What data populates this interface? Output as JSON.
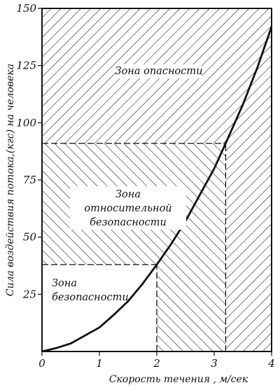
{
  "chart_data": {
    "type": "line",
    "xlabel": "Скорость течения , м/сек",
    "ylabel": "Сила воздействия потока,(кгс) на человека",
    "xlim": [
      0,
      4
    ],
    "ylim": [
      0,
      150
    ],
    "x_ticks": [
      "0",
      "1",
      "2",
      "3",
      "4"
    ],
    "y_ticks": [
      "25",
      "50",
      "75",
      "100",
      "125",
      "150"
    ],
    "grid": false,
    "series": [
      {
        "x": [
          0,
          0.25,
          0.5,
          0.75,
          1.0,
          1.25,
          1.5,
          1.75,
          2.0,
          2.25,
          2.5,
          2.75,
          3.0,
          3.2,
          3.5,
          3.75,
          4.0
        ],
        "y": [
          0,
          1.5,
          3.5,
          7,
          10.5,
          16,
          22,
          29.5,
          38,
          47,
          57,
          68.5,
          80,
          91,
          108,
          124,
          142
        ]
      }
    ],
    "reference_lines": [
      {
        "type": "horizontal",
        "y": 38,
        "x_end": 2.0
      },
      {
        "type": "vertical",
        "x": 2.0,
        "y_end": 38
      },
      {
        "type": "horizontal",
        "y": 91,
        "x_end": 3.2
      },
      {
        "type": "vertical",
        "x": 3.2,
        "y_end": 91
      }
    ],
    "zones": [
      {
        "label_lines": [
          "Зона",
          "безопасности"
        ],
        "y_range": [
          0,
          38
        ],
        "x_range": [
          0,
          2.0
        ],
        "hatch": "none"
      },
      {
        "label_lines": [
          "Зона",
          "относительной",
          "безопасности"
        ],
        "y_range": [
          38,
          91
        ],
        "x_range": [
          0,
          3.2
        ],
        "hatch": "backslash"
      },
      {
        "label_lines": [
          "Зона опасности"
        ],
        "y_range": [
          91,
          150
        ],
        "x_range": [
          0,
          4
        ],
        "hatch": "slash"
      }
    ],
    "colors": {
      "ink": "#111111",
      "background": "#ffffff"
    }
  }
}
